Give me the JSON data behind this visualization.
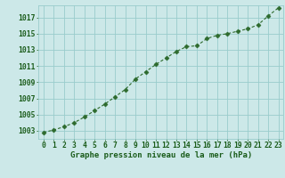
{
  "x": [
    0,
    1,
    2,
    3,
    4,
    5,
    6,
    7,
    8,
    9,
    10,
    11,
    12,
    13,
    14,
    15,
    16,
    17,
    18,
    19,
    20,
    21,
    22,
    23
  ],
  "y": [
    1002.8,
    1003.1,
    1003.5,
    1004.0,
    1004.7,
    1005.5,
    1006.3,
    1007.2,
    1008.1,
    1009.4,
    1010.3,
    1011.2,
    1012.0,
    1012.8,
    1013.4,
    1013.5,
    1014.4,
    1014.8,
    1015.0,
    1015.3,
    1015.6,
    1016.1,
    1017.2,
    1018.2
  ],
  "line_color": "#2d6a2d",
  "marker": "D",
  "bg_color": "#cce8e8",
  "grid_color": "#99cccc",
  "title": "Graphe pression niveau de la mer (hPa)",
  "title_color": "#1a5c1a",
  "tick_color": "#1a5c1a",
  "ylim_min": 1002.0,
  "ylim_max": 1018.5,
  "yticks": [
    1003,
    1005,
    1007,
    1009,
    1011,
    1013,
    1015,
    1017
  ],
  "xlabel_fontsize": 6.5,
  "tick_fontsize": 5.8,
  "line_width": 0.8,
  "marker_size": 2.5
}
